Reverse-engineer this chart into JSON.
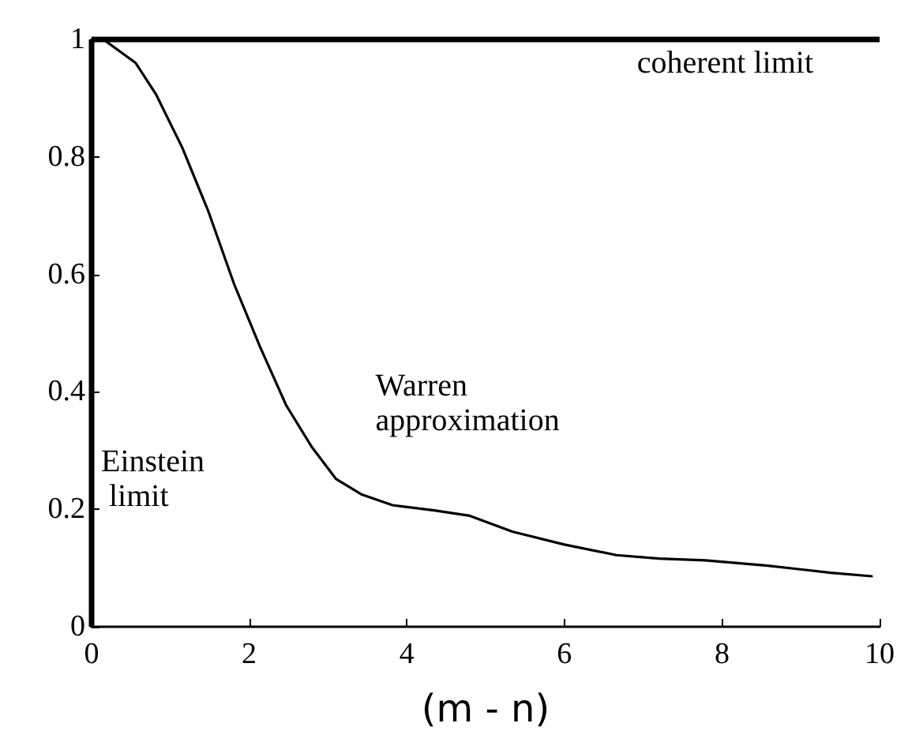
{
  "chart_data": {
    "type": "line",
    "xlabel": "(m - n)",
    "xlim": [
      0,
      10
    ],
    "ylim": [
      0,
      1
    ],
    "xticks": [
      0,
      2,
      4,
      6,
      8,
      10
    ],
    "yticks": [
      0,
      0.2,
      0.4,
      0.6,
      0.8,
      1
    ],
    "grid": false,
    "legend": false,
    "marker": "none",
    "line_style": "solid",
    "series": [
      {
        "name": "Warren approximation",
        "color": "#000000",
        "x": [
          0,
          0.15,
          0.56,
          0.82,
          1.15,
          1.48,
          1.81,
          2.14,
          2.47,
          2.8,
          3.1,
          3.43,
          3.82,
          4.35,
          4.8,
          5.34,
          6.0,
          6.66,
          7.2,
          7.79,
          8.58,
          9.38,
          9.9
        ],
        "values": [
          1,
          1,
          0.96,
          0.906,
          0.816,
          0.708,
          0.583,
          0.476,
          0.377,
          0.305,
          0.252,
          0.225,
          0.207,
          0.198,
          0.189,
          0.162,
          0.14,
          0.122,
          0.116,
          0.113,
          0.104,
          0.092,
          0.086
        ]
      }
    ],
    "ref_lines": [
      {
        "axis": "y",
        "value": 1,
        "label": "coherent limit",
        "color": "#000000"
      },
      {
        "axis": "x",
        "value": 0,
        "label": "Einstein limit",
        "color": "#000000"
      }
    ]
  }
}
